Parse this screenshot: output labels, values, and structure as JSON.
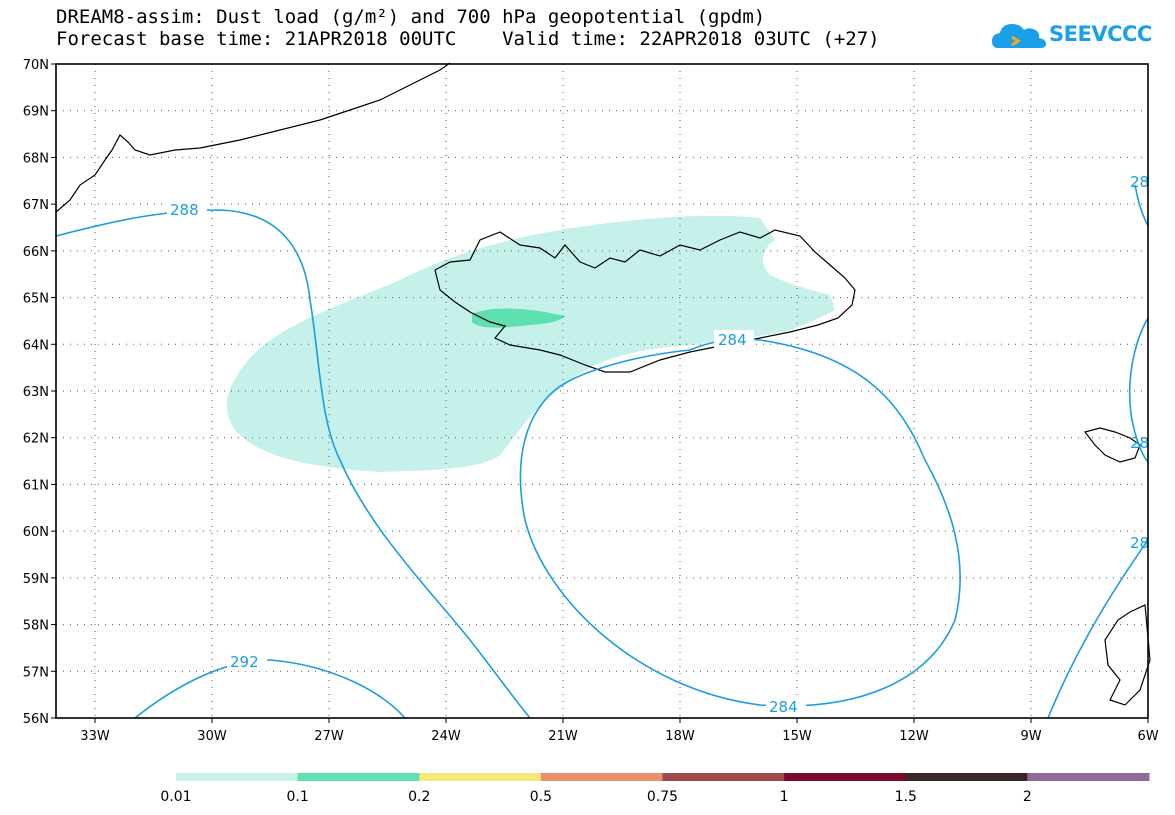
{
  "title": {
    "line1": "DREAM8-assim: Dust load (g/m²) and 700 hPa geopotential (gpdm)",
    "line2": "Forecast base time: 21APR2018 00UTC    Valid time: 22APR2018 03UTC (+27)"
  },
  "logo": {
    "text": "SEEVCCC",
    "icon": "cloud-icon"
  },
  "map": {
    "lat_labels": [
      "70N",
      "69N",
      "68N",
      "67N",
      "66N",
      "65N",
      "64N",
      "63N",
      "62N",
      "61N",
      "60N",
      "59N",
      "58N",
      "57N",
      "56N"
    ],
    "lon_labels": [
      "33W",
      "30W",
      "27W",
      "24W",
      "21W",
      "18W",
      "15W",
      "12W",
      "9W",
      "6W"
    ],
    "contour_labels": [
      "288",
      "284",
      "284",
      "292",
      "28",
      "28",
      "28"
    ],
    "contour_color": "#1a9ee0",
    "coast_color": "#000000"
  },
  "colorbar": {
    "labels": [
      "0.01",
      "0.1",
      "0.2",
      "0.5",
      "0.75",
      "1",
      "1.5",
      "2"
    ],
    "colors": [
      "#c5f1ea",
      "#5fe0b0",
      "#f6e77a",
      "#e8906c",
      "#9c4a4c",
      "#7a0a2c",
      "#3a2626",
      "#906a98"
    ]
  }
}
